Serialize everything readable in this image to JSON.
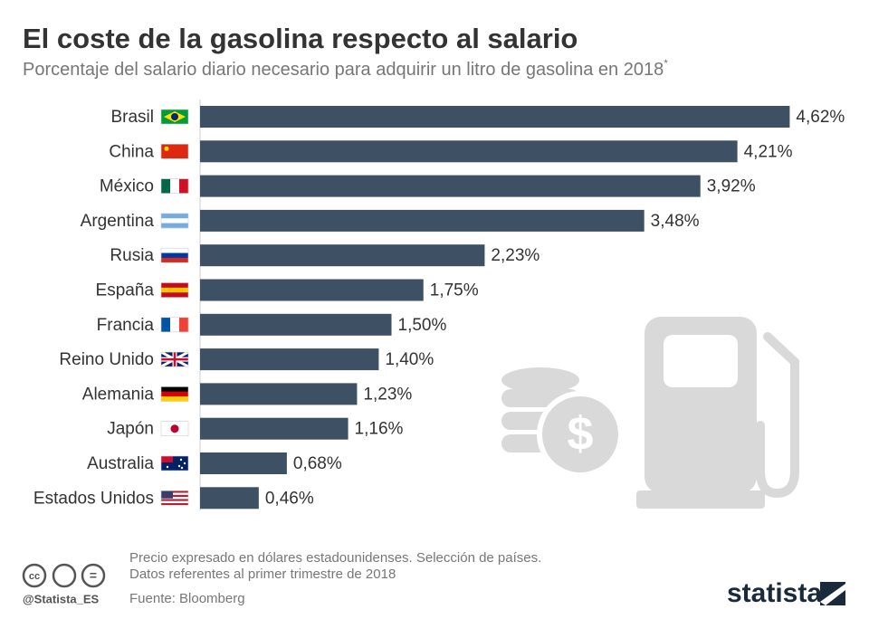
{
  "chart_data": {
    "type": "bar",
    "orientation": "horizontal",
    "title": "El coste de la gasolina respecto al salario",
    "subtitle": "Porcentaje del salario diario necesario para adquirir un litro de gasolina en 2018",
    "subtitle_mark": "*",
    "categories": [
      "Brasil",
      "China",
      "México",
      "Argentina",
      "Rusia",
      "España",
      "Francia",
      "Reino Unido",
      "Alemania",
      "Japón",
      "Australia",
      "Estados Unidos"
    ],
    "values": [
      4.62,
      4.21,
      3.92,
      3.48,
      2.23,
      1.75,
      1.5,
      1.4,
      1.23,
      1.16,
      0.68,
      0.46
    ],
    "value_labels": [
      "4,62%",
      "4,21%",
      "3,92%",
      "3,48%",
      "2,23%",
      "1,75%",
      "1,50%",
      "1,40%",
      "1,23%",
      "1,16%",
      "0,68%",
      "0,46%"
    ],
    "color": "#3d5064",
    "notes": [
      "Precio expresado en dólares estadounidenses. Selección de países.",
      "Datos referentes al primer trimestre de 2018"
    ],
    "source": "Fuente: Bloomberg",
    "handle": "@Statista_ES",
    "brand": "statista"
  }
}
